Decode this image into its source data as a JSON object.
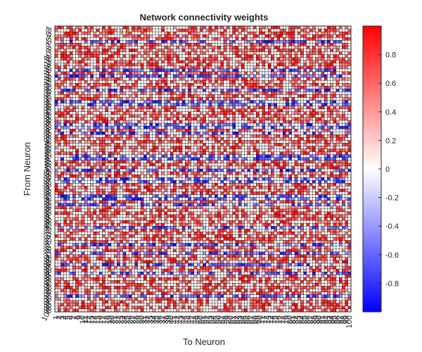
{
  "chart_data": {
    "type": "heatmap",
    "title": "Network connectivity weights",
    "xlabel": "To Neuron",
    "ylabel": "From Neuron",
    "rows": 100,
    "cols": 100,
    "x_ticks": [
      "1",
      "2",
      "3",
      "4",
      "5",
      "6",
      "7",
      "8",
      "9",
      "10",
      "11",
      "12",
      "13",
      "14",
      "15",
      "16",
      "17",
      "18",
      "19",
      "20",
      "21",
      "22",
      "23",
      "24",
      "25",
      "26",
      "27",
      "28",
      "29",
      "30",
      "31",
      "32",
      "33",
      "34",
      "35",
      "36",
      "37",
      "38",
      "39",
      "40",
      "41",
      "42",
      "43",
      "44",
      "45",
      "46",
      "47",
      "48",
      "49",
      "50",
      "51",
      "52",
      "53",
      "54",
      "55",
      "56",
      "57",
      "58",
      "59",
      "60",
      "61",
      "62",
      "63",
      "64",
      "65",
      "66",
      "67",
      "68",
      "69",
      "70",
      "71",
      "72",
      "73",
      "74",
      "75",
      "76",
      "77",
      "78",
      "79",
      "80",
      "81",
      "82",
      "83",
      "84",
      "85",
      "86",
      "87",
      "88",
      "89",
      "90",
      "91",
      "92",
      "93",
      "94",
      "95",
      "96",
      "97",
      "98",
      "99",
      "100"
    ],
    "y_ticks": [
      "1",
      "2",
      "3",
      "4",
      "5",
      "6",
      "7",
      "8",
      "9",
      "10",
      "11",
      "12",
      "13",
      "14",
      "15",
      "16",
      "17",
      "18",
      "19",
      "20",
      "21",
      "22",
      "23",
      "24",
      "25",
      "26",
      "27",
      "28",
      "29",
      "30",
      "31",
      "32",
      "33",
      "34",
      "35",
      "36",
      "37",
      "38",
      "39",
      "40",
      "41",
      "42",
      "43",
      "44",
      "45",
      "46",
      "47",
      "48",
      "49",
      "50",
      "51",
      "52",
      "53",
      "54",
      "55",
      "56",
      "57",
      "58",
      "59",
      "60",
      "61",
      "62",
      "63",
      "64",
      "65",
      "66",
      "67",
      "68",
      "69",
      "70",
      "71",
      "72",
      "73",
      "74",
      "75",
      "76",
      "77",
      "78",
      "79",
      "80",
      "81",
      "82",
      "83",
      "84",
      "85",
      "86",
      "87",
      "88",
      "89",
      "90",
      "91",
      "92",
      "93",
      "94",
      "95",
      "96",
      "97",
      "98",
      "99",
      "100"
    ],
    "inhibitory_rows": [
      6,
      16,
      18,
      23,
      27,
      28,
      35,
      36,
      38,
      46,
      47,
      51,
      54,
      55,
      60,
      61,
      63,
      71,
      77,
      80,
      84,
      87,
      95
    ],
    "value_range": [
      -1,
      1
    ],
    "colorbar": {
      "ticks": [
        "0.8",
        "0.6",
        "0.4",
        "0.2",
        "0",
        "-0.2",
        "-0.4",
        "-0.6",
        "-0.8"
      ],
      "tick_values": [
        0.8,
        0.6,
        0.4,
        0.2,
        0,
        -0.2,
        -0.4,
        -0.6,
        -0.8
      ],
      "colors": {
        "high": "#ff0000",
        "mid": "#ffffff",
        "low": "#0000ff"
      }
    },
    "grid": true,
    "cell_border_color": "#000000"
  }
}
